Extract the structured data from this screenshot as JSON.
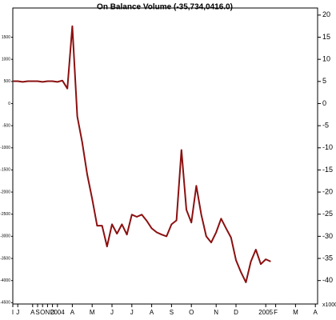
{
  "chart_data": {
    "type": "line",
    "title": "On Balance Volume (-35,734,0416.0)",
    "axis_note": "x1000",
    "categories": [
      "I",
      "J",
      null,
      null,
      "A",
      "S",
      "O",
      "N",
      "D",
      "2004",
      null,
      null,
      "A",
      null,
      null,
      null,
      "M",
      null,
      null,
      null,
      "J",
      null,
      null,
      null,
      "J",
      null,
      null,
      null,
      "A",
      null,
      null,
      null,
      "S",
      null,
      null,
      null,
      "O",
      null,
      null,
      null,
      null,
      "N",
      null,
      null,
      null,
      "D",
      null,
      null,
      null,
      null,
      null,
      "2005",
      null,
      "F",
      null,
      null,
      null,
      "M",
      null,
      null,
      null,
      "A"
    ],
    "series": [
      {
        "name": "On Balance Volume",
        "color": "#8b1010",
        "values": [
          5.05,
          5.05,
          4.9,
          5.05,
          5.05,
          5.05,
          4.9,
          5.05,
          5.05,
          4.9,
          5.2,
          3.4,
          17.5,
          -2.9,
          -8.8,
          -16,
          -21.5,
          -27.6,
          -27.6,
          -32.3,
          -27.3,
          -29.4,
          -27.3,
          -29.6,
          -25.1,
          -25.6,
          -25.1,
          -26.5,
          -28.2,
          -29.1,
          -29.6,
          -30,
          -27.3,
          -26.4,
          -10.5,
          -24,
          -26.9,
          -18.6,
          -25.1,
          -30,
          -31.4,
          -29.1,
          -26,
          -28.2,
          -30.3,
          -35.4,
          -38.1,
          -40.4,
          -35.7,
          -33,
          -36.3,
          -35.2,
          -35.7,
          null,
          null,
          null,
          null,
          null,
          null,
          null,
          null,
          null
        ]
      }
    ],
    "ylim": [
      -45.3,
      21.6
    ],
    "yticks": [
      20,
      15,
      10,
      5,
      0,
      -5,
      -10,
      -15,
      -20,
      -25,
      -30,
      -35,
      -40
    ],
    "y2lim": [
      -4530,
      2160
    ],
    "y2ticks": [
      1500,
      1000,
      500,
      0,
      -500,
      -1000,
      -1500,
      -2000,
      -2500,
      -3000,
      -3500,
      -4000,
      -4500
    ]
  }
}
